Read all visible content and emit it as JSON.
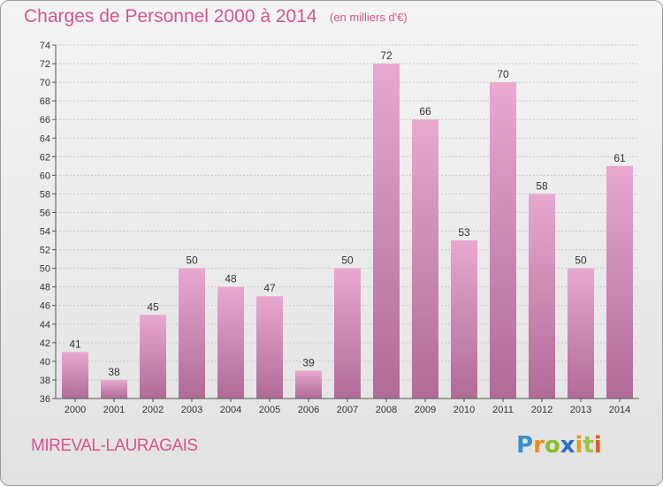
{
  "header": {
    "title": "Charges de Personnel 2000 à 2014",
    "subtitle": "(en milliers d'€)"
  },
  "footer": {
    "commune": "MIREVAL-LAURAGAIS",
    "logo_text": "Proxiti",
    "logo_letters": [
      {
        "ch": "P",
        "color": "#3a8fd0"
      },
      {
        "ch": "r",
        "color": "#f08a1c"
      },
      {
        "ch": "o",
        "color": "#8bbf2a"
      },
      {
        "ch": "x",
        "color": "#2f6fc4"
      },
      {
        "ch": "i",
        "color": "#e0a31a"
      },
      {
        "ch": "t",
        "color": "#9bc53d"
      },
      {
        "ch": "i",
        "color": "#e05a2a"
      }
    ]
  },
  "colors": {
    "title": "#d4548e",
    "bar_top": "#e8a8cf",
    "bar_bottom": "#b06b96",
    "axis": "#555555",
    "grid": "#c8c8c8"
  },
  "chart_data": {
    "type": "bar",
    "title": "Charges de Personnel 2000 à 2014",
    "subtitle": "(en milliers d'€)",
    "categories": [
      "2000",
      "2001",
      "2002",
      "2003",
      "2004",
      "2005",
      "2006",
      "2007",
      "2008",
      "2009",
      "2010",
      "2011",
      "2012",
      "2013",
      "2014"
    ],
    "values": [
      41,
      38,
      45,
      50,
      48,
      47,
      39,
      50,
      72,
      66,
      53,
      70,
      58,
      50,
      61
    ],
    "ylim": [
      36,
      74
    ],
    "yticks": [
      36,
      38,
      40,
      42,
      44,
      46,
      48,
      50,
      52,
      54,
      56,
      58,
      60,
      62,
      64,
      66,
      68,
      70,
      72,
      74
    ],
    "grid": true,
    "data_labels": true
  }
}
